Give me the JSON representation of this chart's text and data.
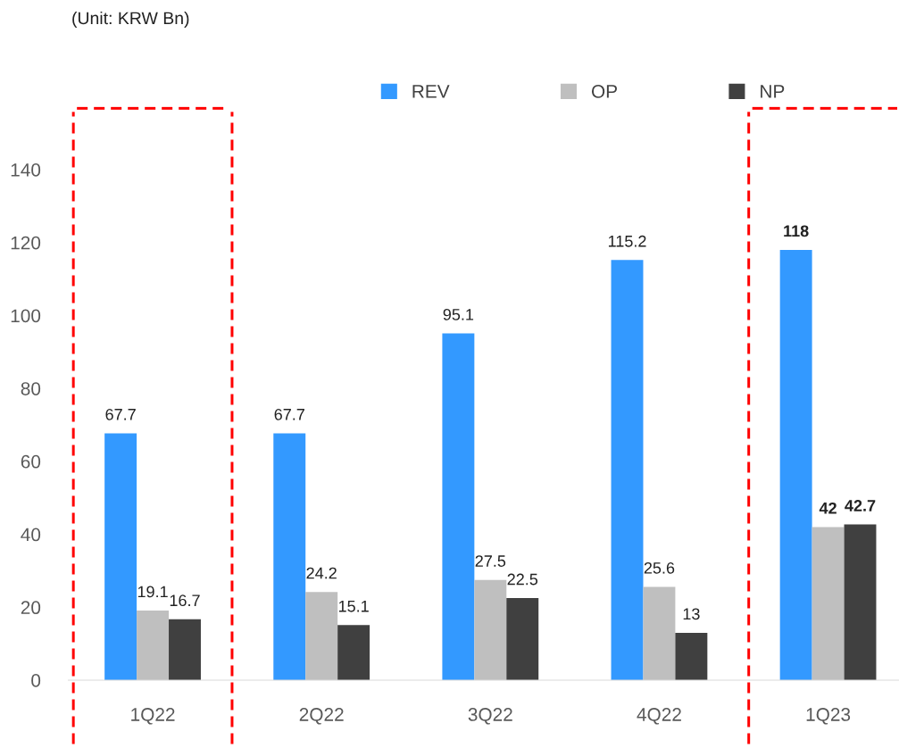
{
  "chart_data": {
    "type": "bar",
    "categories": [
      "1Q22",
      "2Q22",
      "3Q22",
      "4Q22",
      "1Q23"
    ],
    "series": [
      {
        "name": "REV",
        "color": "#3399ff",
        "values": [
          67.7,
          67.7,
          95.1,
          115.2,
          118
        ]
      },
      {
        "name": "OP",
        "color": "#bfbfbf",
        "values": [
          19.1,
          24.2,
          27.5,
          25.6,
          42
        ]
      },
      {
        "name": "NP",
        "color": "#404040",
        "values": [
          16.7,
          15.1,
          22.5,
          13,
          42.7
        ]
      }
    ],
    "ylim": [
      0,
      140
    ],
    "yticks": [
      0,
      20,
      40,
      60,
      80,
      100,
      120,
      140
    ],
    "data_labels": true,
    "grid": false,
    "legend": "top",
    "annotations": [
      "(Unit: KRW Bn)"
    ]
  }
}
